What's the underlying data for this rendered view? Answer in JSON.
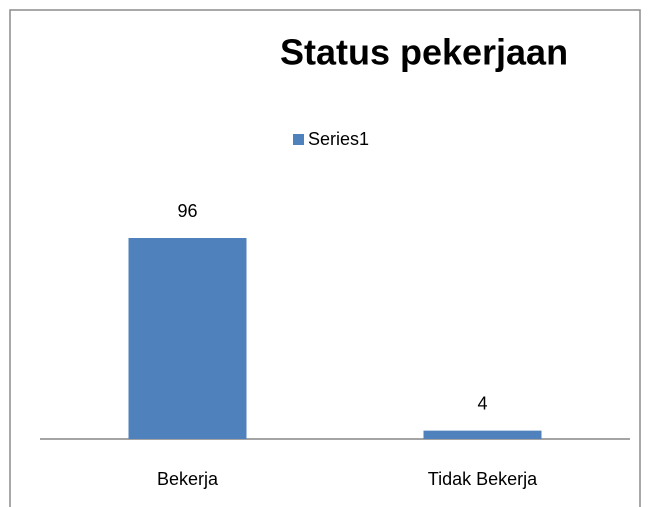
{
  "chart_data": {
    "type": "bar",
    "title": "Status pekerjaan",
    "categories": [
      "Bekerja",
      "Tidak Bekerja"
    ],
    "series": [
      {
        "name": "Series1",
        "color": "#4f81bd",
        "values": [
          96,
          4
        ]
      }
    ],
    "legend": "top"
  }
}
